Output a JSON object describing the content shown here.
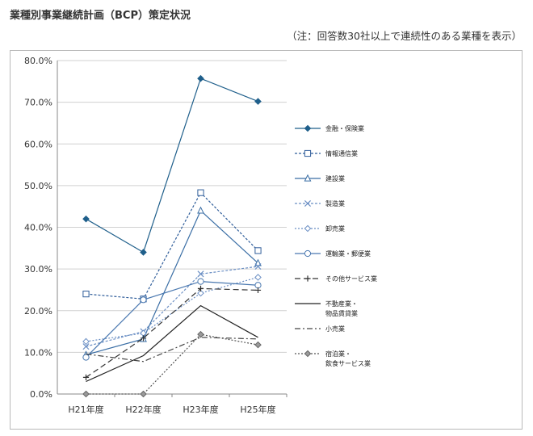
{
  "header": {
    "title": "業種別事業継続計画（BCP）策定状況",
    "note": "（注：回答数30社以上で連続性のある業種を表示）"
  },
  "chart_data": {
    "type": "line",
    "title": "業種別事業継続計画（BCP）策定状況",
    "xlabel": "",
    "ylabel": "",
    "categories": [
      "H21年度",
      "H22年度",
      "H23年度",
      "H25年度"
    ],
    "ylim": [
      0,
      80
    ],
    "yticks": [
      "0.0%",
      "10.0%",
      "20.0%",
      "30.0%",
      "40.0%",
      "50.0%",
      "60.0%",
      "70.0%",
      "80.0%"
    ],
    "grid": "horizontal",
    "legend": "right",
    "series": [
      {
        "name": "金融・保険業",
        "values": [
          42.0,
          34.0,
          75.7,
          70.2
        ],
        "color": "#1f5f8b",
        "dash": "",
        "marker": "diamond-filled"
      },
      {
        "name": "情報通信業",
        "values": [
          24.0,
          22.8,
          48.3,
          34.4
        ],
        "color": "#2f5d9a",
        "dash": "3,2",
        "marker": "square-open"
      },
      {
        "name": "建設業",
        "values": [
          9.4,
          13.2,
          44.0,
          31.4
        ],
        "color": "#3a6ea5",
        "dash": "",
        "marker": "triangle-open"
      },
      {
        "name": "製造業",
        "values": [
          11.4,
          15.0,
          28.8,
          30.6
        ],
        "color": "#6b8fc4",
        "dash": "3,2",
        "marker": "x"
      },
      {
        "name": "卸売業",
        "values": [
          12.6,
          14.6,
          24.2,
          28.0
        ],
        "color": "#6b8fc4",
        "dash": "2,2",
        "marker": "diamond-open"
      },
      {
        "name": "運輸業・郵便業",
        "values": [
          8.8,
          22.6,
          27.0,
          26.1
        ],
        "color": "#4a78b0",
        "dash": "",
        "marker": "circle-open"
      },
      {
        "name": "その他サービス業",
        "values": [
          4.0,
          13.4,
          25.3,
          24.9
        ],
        "color": "#333333",
        "dash": "7,4",
        "marker": "plus"
      },
      {
        "name": "不動産業・物品賃貸業",
        "values": [
          3.0,
          9.2,
          21.2,
          13.6
        ],
        "color": "#222222",
        "dash": "",
        "marker": "none"
      },
      {
        "name": "小売業",
        "values": [
          9.6,
          7.8,
          13.6,
          13.2
        ],
        "color": "#444444",
        "dash": "7,3,2,3",
        "marker": "none"
      },
      {
        "name": "宿泊業・飲食サービス業",
        "values": [
          0.0,
          0.0,
          14.3,
          11.8
        ],
        "color": "#555555",
        "dash": "2,2",
        "marker": "diamond-gray"
      }
    ]
  }
}
